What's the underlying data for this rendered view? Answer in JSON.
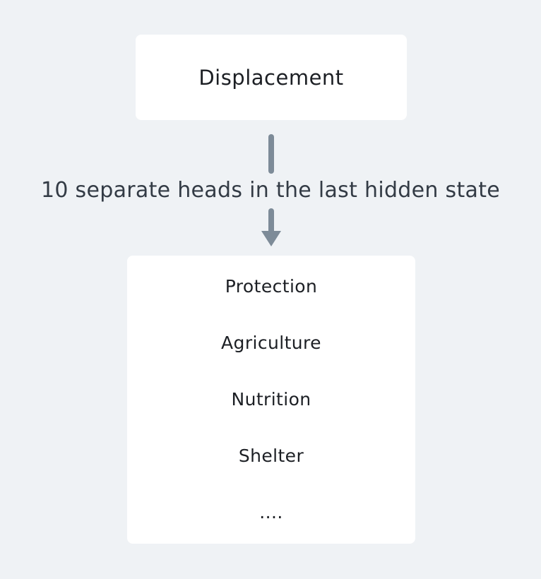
{
  "diagram": {
    "top_box": {
      "label": "Displacement"
    },
    "connector": {
      "label": "10 separate heads in the last hidden state"
    },
    "heads": [
      "Protection",
      "Agriculture",
      "Nutrition",
      "Shelter",
      "...."
    ],
    "colors": {
      "background": "#eff2f5",
      "box": "#ffffff",
      "arrow": "#7d8b98",
      "text": "#1c1f24",
      "label": "#333b45"
    }
  }
}
